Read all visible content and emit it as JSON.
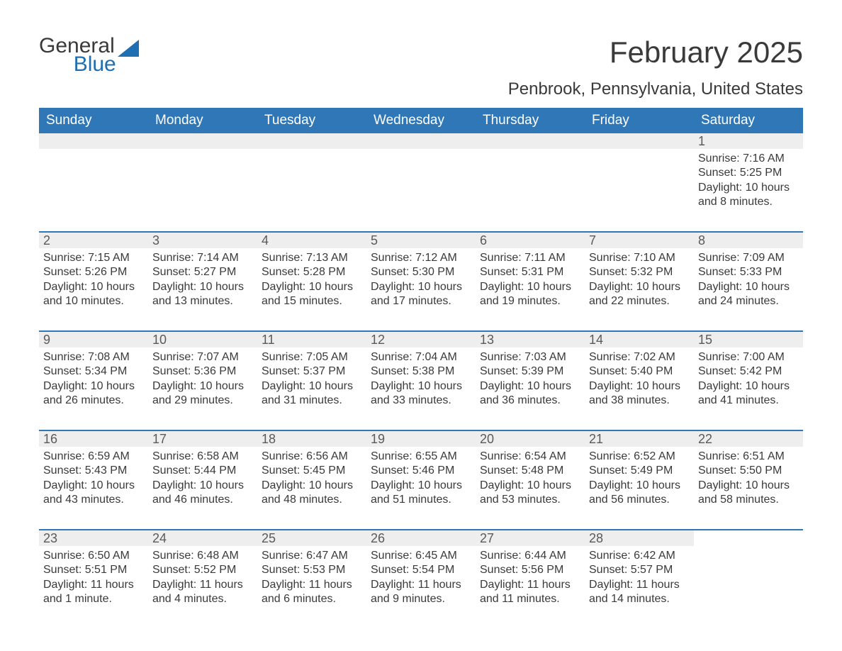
{
  "logo": {
    "general": "General",
    "blue": "Blue"
  },
  "title": {
    "month": "February 2025",
    "location": "Penbrook, Pennsylvania, United States"
  },
  "colors": {
    "headerBlue": "#2f77b7",
    "ruleBlue": "#2f77b7",
    "dayBarGray": "#eeeeee",
    "textDark": "#3a3a3a",
    "logoBlue": "#1f6fb2",
    "background": "#ffffff"
  },
  "weekdays": [
    "Sunday",
    "Monday",
    "Tuesday",
    "Wednesday",
    "Thursday",
    "Friday",
    "Saturday"
  ],
  "weeks": [
    [
      {
        "blank": true
      },
      {
        "blank": true
      },
      {
        "blank": true
      },
      {
        "blank": true
      },
      {
        "blank": true
      },
      {
        "blank": true
      },
      {
        "num": "1",
        "sunrise": "Sunrise: 7:16 AM",
        "sunset": "Sunset: 5:25 PM",
        "daylight": "Daylight: 10 hours and 8 minutes."
      }
    ],
    [
      {
        "num": "2",
        "sunrise": "Sunrise: 7:15 AM",
        "sunset": "Sunset: 5:26 PM",
        "daylight": "Daylight: 10 hours and 10 minutes."
      },
      {
        "num": "3",
        "sunrise": "Sunrise: 7:14 AM",
        "sunset": "Sunset: 5:27 PM",
        "daylight": "Daylight: 10 hours and 13 minutes."
      },
      {
        "num": "4",
        "sunrise": "Sunrise: 7:13 AM",
        "sunset": "Sunset: 5:28 PM",
        "daylight": "Daylight: 10 hours and 15 minutes."
      },
      {
        "num": "5",
        "sunrise": "Sunrise: 7:12 AM",
        "sunset": "Sunset: 5:30 PM",
        "daylight": "Daylight: 10 hours and 17 minutes."
      },
      {
        "num": "6",
        "sunrise": "Sunrise: 7:11 AM",
        "sunset": "Sunset: 5:31 PM",
        "daylight": "Daylight: 10 hours and 19 minutes."
      },
      {
        "num": "7",
        "sunrise": "Sunrise: 7:10 AM",
        "sunset": "Sunset: 5:32 PM",
        "daylight": "Daylight: 10 hours and 22 minutes."
      },
      {
        "num": "8",
        "sunrise": "Sunrise: 7:09 AM",
        "sunset": "Sunset: 5:33 PM",
        "daylight": "Daylight: 10 hours and 24 minutes."
      }
    ],
    [
      {
        "num": "9",
        "sunrise": "Sunrise: 7:08 AM",
        "sunset": "Sunset: 5:34 PM",
        "daylight": "Daylight: 10 hours and 26 minutes."
      },
      {
        "num": "10",
        "sunrise": "Sunrise: 7:07 AM",
        "sunset": "Sunset: 5:36 PM",
        "daylight": "Daylight: 10 hours and 29 minutes."
      },
      {
        "num": "11",
        "sunrise": "Sunrise: 7:05 AM",
        "sunset": "Sunset: 5:37 PM",
        "daylight": "Daylight: 10 hours and 31 minutes."
      },
      {
        "num": "12",
        "sunrise": "Sunrise: 7:04 AM",
        "sunset": "Sunset: 5:38 PM",
        "daylight": "Daylight: 10 hours and 33 minutes."
      },
      {
        "num": "13",
        "sunrise": "Sunrise: 7:03 AM",
        "sunset": "Sunset: 5:39 PM",
        "daylight": "Daylight: 10 hours and 36 minutes."
      },
      {
        "num": "14",
        "sunrise": "Sunrise: 7:02 AM",
        "sunset": "Sunset: 5:40 PM",
        "daylight": "Daylight: 10 hours and 38 minutes."
      },
      {
        "num": "15",
        "sunrise": "Sunrise: 7:00 AM",
        "sunset": "Sunset: 5:42 PM",
        "daylight": "Daylight: 10 hours and 41 minutes."
      }
    ],
    [
      {
        "num": "16",
        "sunrise": "Sunrise: 6:59 AM",
        "sunset": "Sunset: 5:43 PM",
        "daylight": "Daylight: 10 hours and 43 minutes."
      },
      {
        "num": "17",
        "sunrise": "Sunrise: 6:58 AM",
        "sunset": "Sunset: 5:44 PM",
        "daylight": "Daylight: 10 hours and 46 minutes."
      },
      {
        "num": "18",
        "sunrise": "Sunrise: 6:56 AM",
        "sunset": "Sunset: 5:45 PM",
        "daylight": "Daylight: 10 hours and 48 minutes."
      },
      {
        "num": "19",
        "sunrise": "Sunrise: 6:55 AM",
        "sunset": "Sunset: 5:46 PM",
        "daylight": "Daylight: 10 hours and 51 minutes."
      },
      {
        "num": "20",
        "sunrise": "Sunrise: 6:54 AM",
        "sunset": "Sunset: 5:48 PM",
        "daylight": "Daylight: 10 hours and 53 minutes."
      },
      {
        "num": "21",
        "sunrise": "Sunrise: 6:52 AM",
        "sunset": "Sunset: 5:49 PM",
        "daylight": "Daylight: 10 hours and 56 minutes."
      },
      {
        "num": "22",
        "sunrise": "Sunrise: 6:51 AM",
        "sunset": "Sunset: 5:50 PM",
        "daylight": "Daylight: 10 hours and 58 minutes."
      }
    ],
    [
      {
        "num": "23",
        "sunrise": "Sunrise: 6:50 AM",
        "sunset": "Sunset: 5:51 PM",
        "daylight": "Daylight: 11 hours and 1 minute."
      },
      {
        "num": "24",
        "sunrise": "Sunrise: 6:48 AM",
        "sunset": "Sunset: 5:52 PM",
        "daylight": "Daylight: 11 hours and 4 minutes."
      },
      {
        "num": "25",
        "sunrise": "Sunrise: 6:47 AM",
        "sunset": "Sunset: 5:53 PM",
        "daylight": "Daylight: 11 hours and 6 minutes."
      },
      {
        "num": "26",
        "sunrise": "Sunrise: 6:45 AM",
        "sunset": "Sunset: 5:54 PM",
        "daylight": "Daylight: 11 hours and 9 minutes."
      },
      {
        "num": "27",
        "sunrise": "Sunrise: 6:44 AM",
        "sunset": "Sunset: 5:56 PM",
        "daylight": "Daylight: 11 hours and 11 minutes."
      },
      {
        "num": "28",
        "sunrise": "Sunrise: 6:42 AM",
        "sunset": "Sunset: 5:57 PM",
        "daylight": "Daylight: 11 hours and 14 minutes."
      },
      {
        "blank": true,
        "noBar": true
      }
    ]
  ]
}
